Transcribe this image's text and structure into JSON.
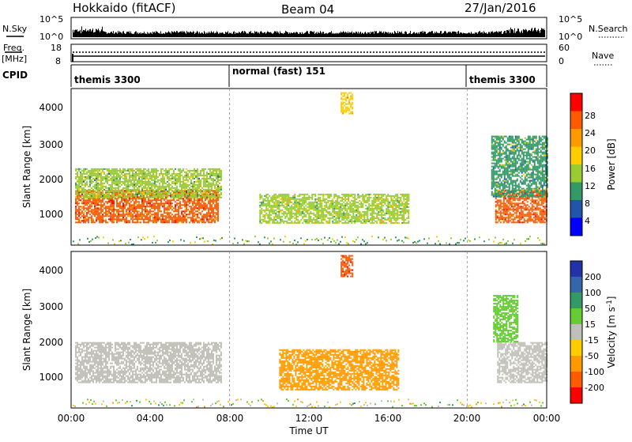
{
  "header": {
    "station": "Hokkaido (fitACF)",
    "beam": "Beam 04",
    "date": "27/Jan/2016"
  },
  "top_panels": {
    "nsky_label": "N.Sky",
    "nsky_ticks": [
      "10^5",
      "10^0"
    ],
    "nsearch_label": "N.Search",
    "nsearch_ticks": [
      "10^5",
      "10^0"
    ],
    "freq_label": "Freq.",
    "freq_unit": "[MHz]",
    "freq_ticks": [
      "18",
      "8"
    ],
    "nave_label": "Nave",
    "nave_ticks": [
      "60",
      "0"
    ],
    "cpid_label": "CPID",
    "cpid_segments": [
      {
        "label": "themis 3300",
        "start_h": 0,
        "end_h": 8.0
      },
      {
        "label": "normal (fast) 151",
        "start_h": 8.0,
        "end_h": 20.0
      },
      {
        "label": "themis 3300",
        "start_h": 20.0,
        "end_h": 24.0
      }
    ]
  },
  "power_panel": {
    "ylabel": "Slant Range [km]",
    "yticks": [
      "4000",
      "3000",
      "2000",
      "1000"
    ],
    "colorbar_label": "Power [dB]",
    "colorbar_ticks": [
      "28",
      "24",
      "20",
      "16",
      "12",
      "8",
      "4"
    ],
    "colorbar_colors": [
      "#ff0000",
      "#ff5a00",
      "#ff9900",
      "#ffcc00",
      "#99cc33",
      "#339966",
      "#2255aa",
      "#0000ff"
    ]
  },
  "velocity_panel": {
    "ylabel": "Slant Range [km]",
    "yticks": [
      "4000",
      "3000",
      "2000",
      "1000"
    ],
    "colorbar_label": "Velocity [m s",
    "colorbar_label_sup": "-1",
    "colorbar_label_end": "]",
    "colorbar_ticks": [
      "200",
      "100",
      "50",
      "15",
      "-15",
      "-50",
      "-100",
      "-200"
    ],
    "colorbar_colors": [
      "#2233aa",
      "#3366aa",
      "#339966",
      "#66cc33",
      "#c0c0b8",
      "#ffcc00",
      "#ff9900",
      "#ff5a00",
      "#ff0000"
    ]
  },
  "x_axis": {
    "ticks": [
      "00:00",
      "04:00",
      "08:00",
      "12:00",
      "16:00",
      "20:00",
      "00:00"
    ],
    "label": "Time UT"
  },
  "chart_data": {
    "type": "heatmap",
    "title": "Hokkaido (fitACF) Beam 04 27/Jan/2016",
    "xlabel": "Time UT",
    "ylabel": "Slant Range [km]",
    "x_range_hours": [
      0,
      24
    ],
    "y_range_km": [
      180,
      4500
    ],
    "freq_mhz": 10.5,
    "power_regions": [
      {
        "t0": 0.2,
        "t1": 7.4,
        "r0": 800,
        "r1": 1700,
        "power_db": 26
      },
      {
        "t0": 0.2,
        "t1": 7.6,
        "r0": 1500,
        "r1": 2300,
        "power_db": 14
      },
      {
        "t0": 9.5,
        "t1": 17.0,
        "r0": 800,
        "r1": 1600,
        "power_db": 16
      },
      {
        "t0": 13.6,
        "t1": 14.2,
        "r0": 3800,
        "r1": 4400,
        "power_db": 20
      },
      {
        "t0": 21.4,
        "t1": 24.0,
        "r0": 800,
        "r1": 1700,
        "power_db": 28
      },
      {
        "t0": 21.2,
        "t1": 24.0,
        "r0": 1500,
        "r1": 3200,
        "power_db": 12
      }
    ],
    "velocity_regions": [
      {
        "t0": 0.2,
        "t1": 7.6,
        "r0": 900,
        "r1": 2000,
        "velocity_ms": 0
      },
      {
        "t0": 10.5,
        "t1": 16.5,
        "r0": 700,
        "r1": 1800,
        "velocity_ms": -60
      },
      {
        "t0": 13.6,
        "t1": 14.2,
        "r0": 3800,
        "r1": 4400,
        "velocity_ms": -200
      },
      {
        "t0": 21.5,
        "t1": 24.0,
        "r0": 900,
        "r1": 2000,
        "velocity_ms": 0
      },
      {
        "t0": 21.3,
        "t1": 22.5,
        "r0": 2000,
        "r1": 3300,
        "velocity_ms": 30
      }
    ]
  }
}
